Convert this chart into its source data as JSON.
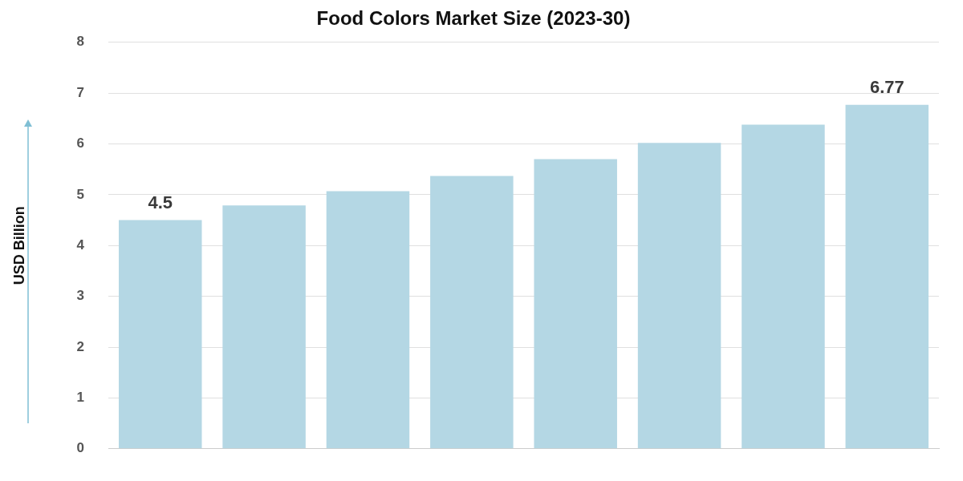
{
  "chart_data": {
    "type": "bar",
    "title": "Food Colors Market Size (2023-30)",
    "ylabel": "USD Billion",
    "categories": [
      null,
      null,
      null,
      null,
      null,
      null,
      null,
      null
    ],
    "values": [
      4.5,
      4.79,
      5.07,
      5.37,
      5.7,
      6.02,
      6.38,
      6.77
    ],
    "value_labels": [
      "4.5",
      null,
      null,
      null,
      null,
      null,
      null,
      "6.77"
    ],
    "color": "#b4d7e4",
    "ylim": [
      0,
      8
    ],
    "yticks": [
      0,
      1,
      2,
      3,
      4,
      5,
      6,
      7,
      8
    ],
    "grid": "y"
  }
}
